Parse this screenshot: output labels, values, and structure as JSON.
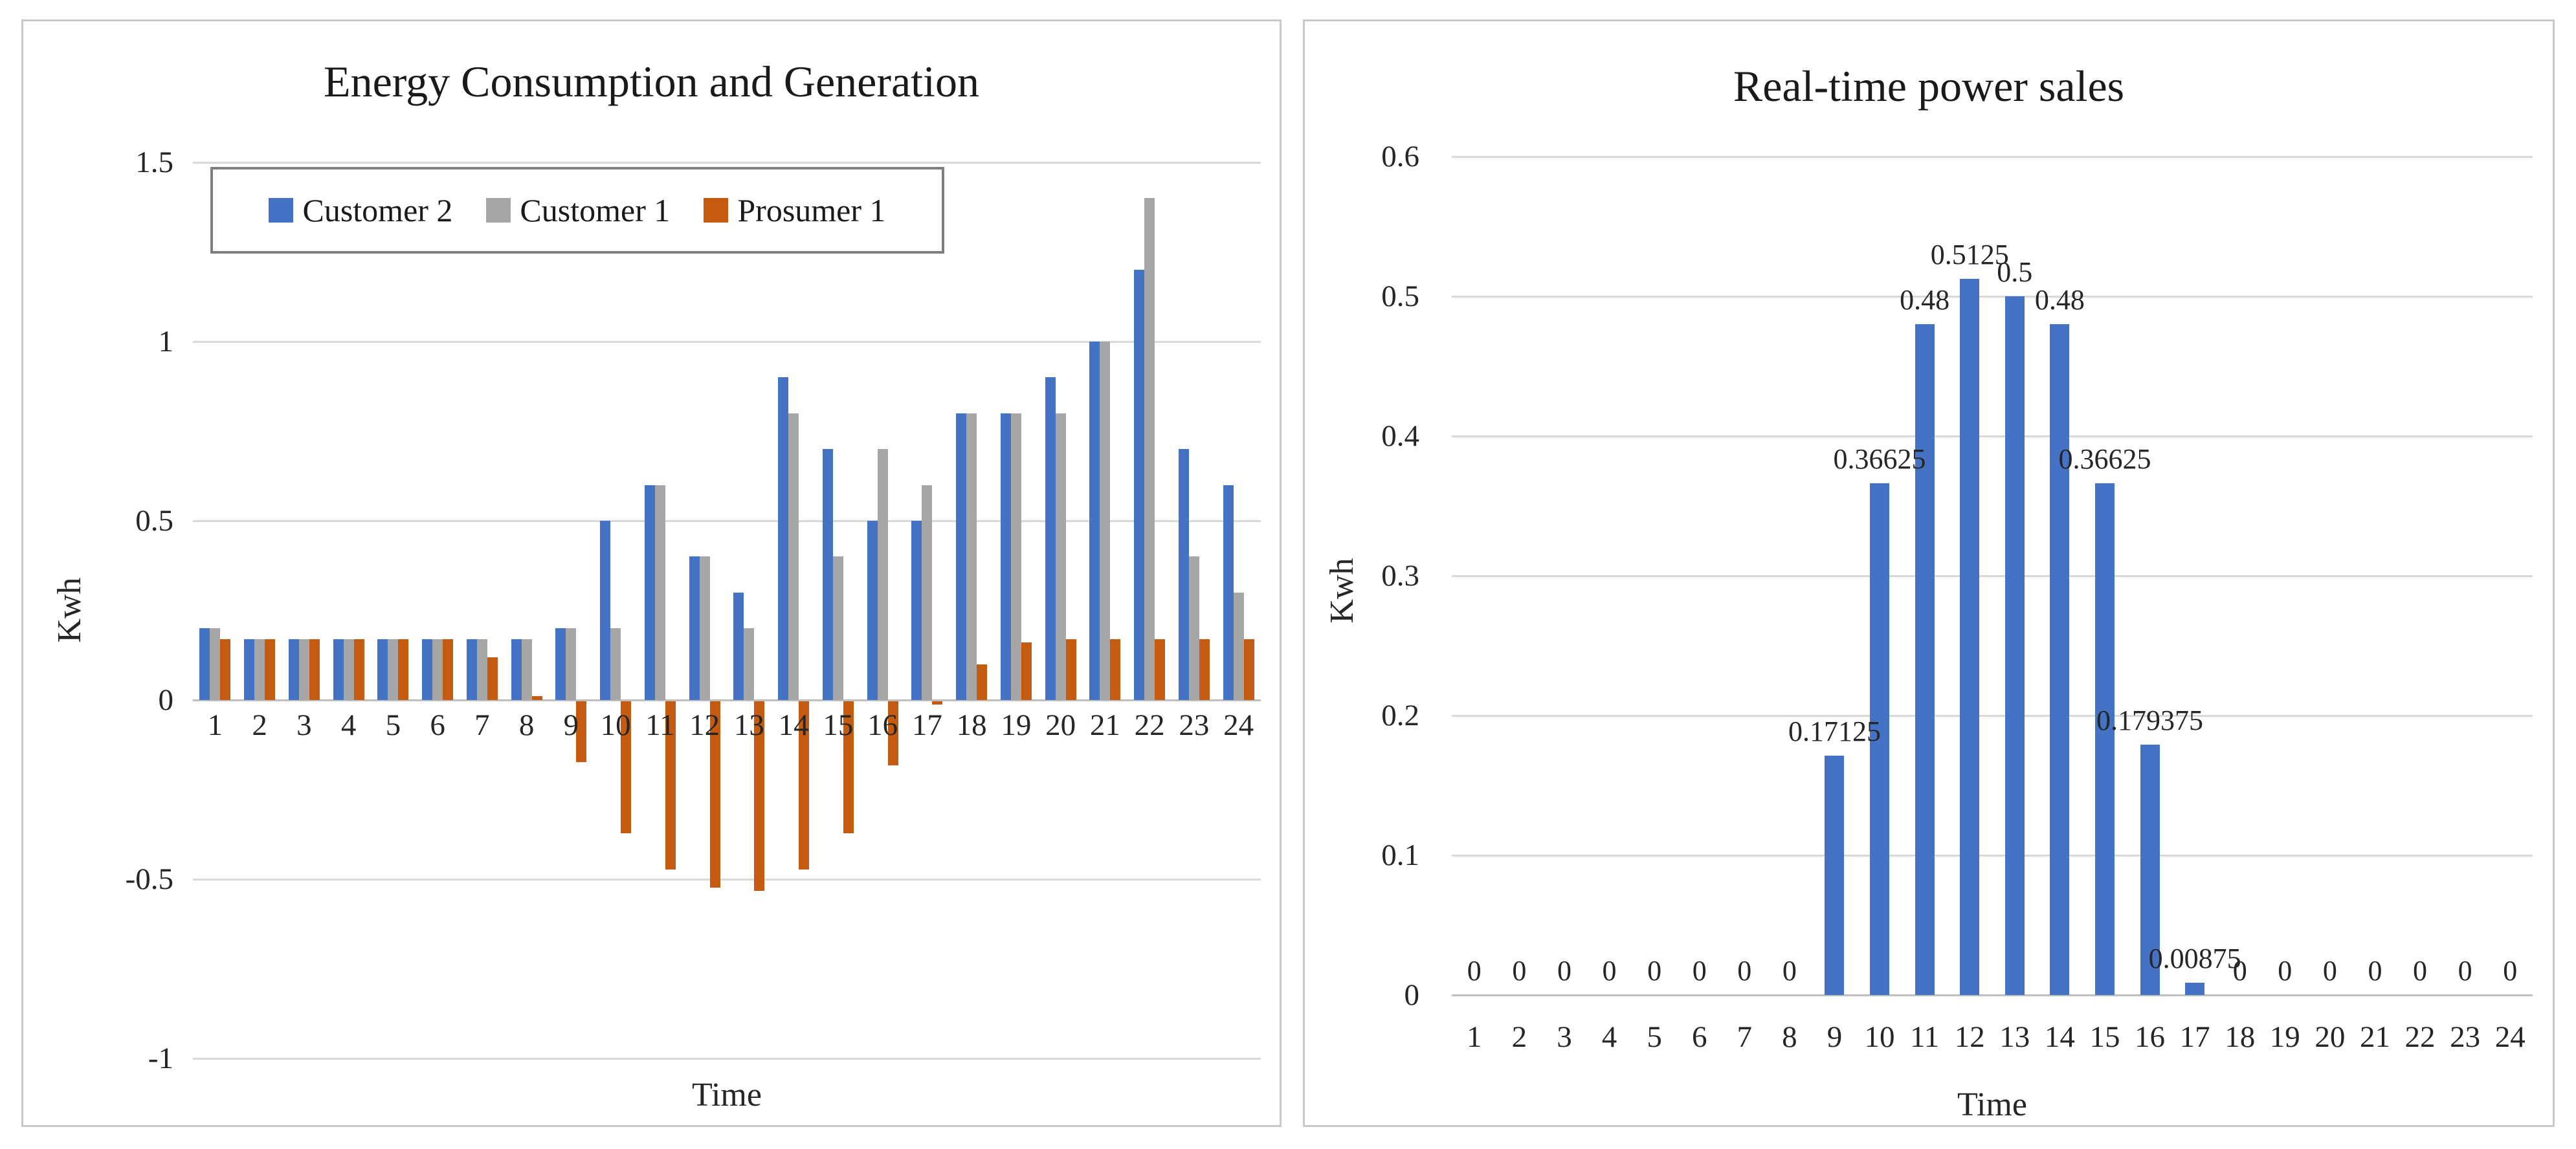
{
  "colors": {
    "series_blue": "#4472C4",
    "series_gray": "#A6A6A6",
    "series_orange": "#C55A11",
    "gridline": "#D9D9D9",
    "axis_line": "#BFBFBF",
    "panel_border": "#C9C9C9",
    "text": "#262626"
  },
  "chart_data": [
    {
      "type": "bar",
      "title": "Energy Consumption and Generation",
      "xlabel": "Time",
      "ylabel": "Kwh",
      "categories": [
        "1",
        "2",
        "3",
        "4",
        "5",
        "6",
        "7",
        "8",
        "9",
        "10",
        "11",
        "12",
        "13",
        "14",
        "15",
        "16",
        "17",
        "18",
        "19",
        "20",
        "21",
        "22",
        "23",
        "24"
      ],
      "yticks": [
        "1.5",
        "1",
        "0.5",
        "0",
        "-0.5",
        "-1"
      ],
      "ylim": [
        -1,
        1.5
      ],
      "grid": true,
      "legend_position": "top-left",
      "series": [
        {
          "name": "Customer 2",
          "color": "#4472C4",
          "values": [
            0.2,
            0.17,
            0.17,
            0.17,
            0.17,
            0.17,
            0.17,
            0.17,
            0.2,
            0.5,
            0.6,
            0.4,
            0.3,
            0.9,
            0.7,
            0.5,
            0.5,
            0.8,
            0.8,
            0.9,
            1,
            1.2,
            0.7,
            0.6
          ]
        },
        {
          "name": "Customer 1",
          "color": "#A6A6A6",
          "values": [
            0.2,
            0.17,
            0.17,
            0.17,
            0.17,
            0.17,
            0.17,
            0.17,
            0.2,
            0.2,
            0.6,
            0.4,
            0.2,
            0.8,
            0.4,
            0.7,
            0.6,
            0.8,
            0.8,
            0.8,
            1,
            1.4,
            0.4,
            0.3
          ]
        },
        {
          "name": "Prosumer 1",
          "color": "#C55A11",
          "values": [
            0.17,
            0.17,
            0.17,
            0.17,
            0.17,
            0.17,
            0.12,
            0.01,
            -0.17,
            -0.37,
            -0.47,
            -0.52,
            -0.53,
            -0.47,
            -0.37,
            -0.18,
            -0.01,
            0.1,
            0.16,
            0.17,
            0.17,
            0.17,
            0.17,
            0.17
          ]
        }
      ]
    },
    {
      "type": "bar",
      "title": "Real-time power sales",
      "xlabel": "Time",
      "ylabel": "Kwh",
      "categories": [
        "1",
        "2",
        "3",
        "4",
        "5",
        "6",
        "7",
        "8",
        "9",
        "10",
        "11",
        "12",
        "13",
        "14",
        "15",
        "16",
        "17",
        "18",
        "19",
        "20",
        "21",
        "22",
        "23",
        "24"
      ],
      "yticks": [
        "0.6",
        "0.5",
        "0.4",
        "0.3",
        "0.2",
        "0.1",
        "0"
      ],
      "ylim": [
        0,
        0.6
      ],
      "grid": true,
      "legend_position": "none",
      "series": [
        {
          "name": "Real-time power sales",
          "color": "#4472C4",
          "values": [
            0,
            0,
            0,
            0,
            0,
            0,
            0,
            0,
            0.17125,
            0.36625,
            0.48,
            0.5125,
            0.5,
            0.48,
            0.36625,
            0.179375,
            0.00875,
            0,
            0,
            0,
            0,
            0,
            0,
            0
          ],
          "data_labels": [
            "0",
            "0",
            "0",
            "0",
            "0",
            "0",
            "0",
            "0",
            "0.17125",
            "0.36625",
            "0.48",
            "0.5125",
            "0.5",
            "0.48",
            "0.36625",
            "0.179375",
            "0.00875",
            "0",
            "0",
            "0",
            "0",
            "0",
            "0",
            "0"
          ]
        }
      ]
    }
  ]
}
